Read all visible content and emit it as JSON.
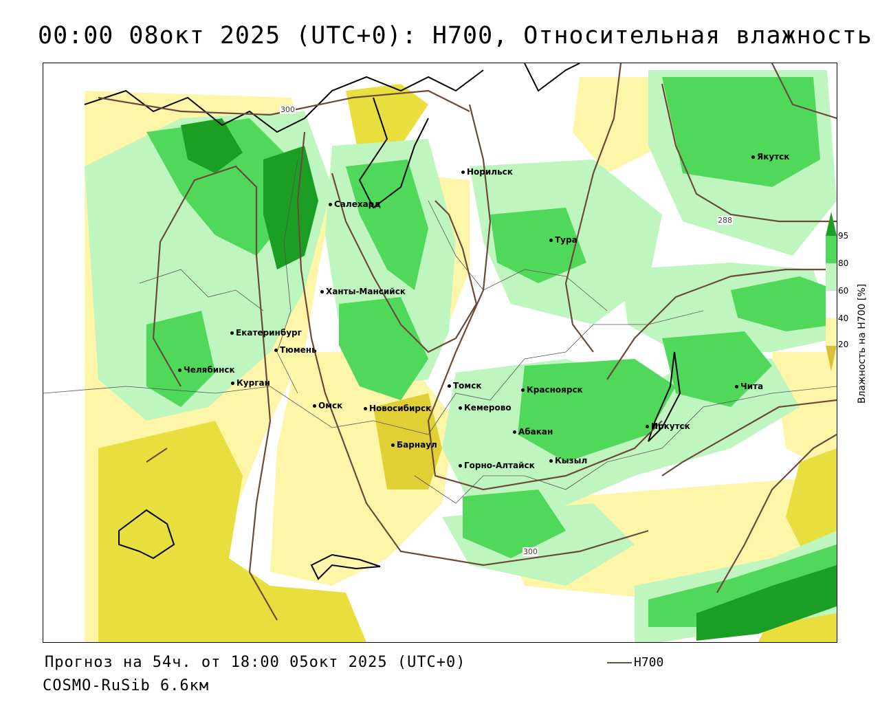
{
  "title": "00:00 08окт 2025 (UTC+0): H700, Относительная влажность",
  "cities": [
    {
      "name": "Якутск"
    },
    {
      "name": "Норильск"
    },
    {
      "name": "Салехард"
    },
    {
      "name": "Тура"
    },
    {
      "name": "Ханты-Мансийск"
    },
    {
      "name": "Екатеринбург"
    },
    {
      "name": "Тюмень"
    },
    {
      "name": "Челябинск"
    },
    {
      "name": "Курган"
    },
    {
      "name": "Омск"
    },
    {
      "name": "Новосибирск"
    },
    {
      "name": "Томск"
    },
    {
      "name": "Кемерово"
    },
    {
      "name": "Красноярск"
    },
    {
      "name": "Абакан"
    },
    {
      "name": "Барнаул"
    },
    {
      "name": "Горно-Алтайск"
    },
    {
      "name": "Кызыл"
    },
    {
      "name": "Иркутск"
    },
    {
      "name": "Чита"
    }
  ],
  "isolines": [
    {
      "label": "300"
    },
    {
      "label": "288"
    },
    {
      "label": "300"
    }
  ],
  "colorbar": {
    "title": "Влажность на H700 [%]",
    "ticks": [
      "95",
      "80",
      "60",
      "40",
      "20"
    ],
    "colors": {
      "very_dry": "#d8c23a",
      "dry": "#e8df3f",
      "moderate": "#fdf5a8",
      "neutral": "#ffffff",
      "humid": "#bff5bf",
      "wet": "#4fd85a",
      "very_wet": "#1a9e24"
    }
  },
  "footer": {
    "forecast": "Прогноз на 54ч. от 18:00 05окт 2025 (UTC+0)",
    "model": "COSMO-RuSib 6.6км",
    "legend_label": "H700",
    "legend_color": "#6b4a3a"
  }
}
